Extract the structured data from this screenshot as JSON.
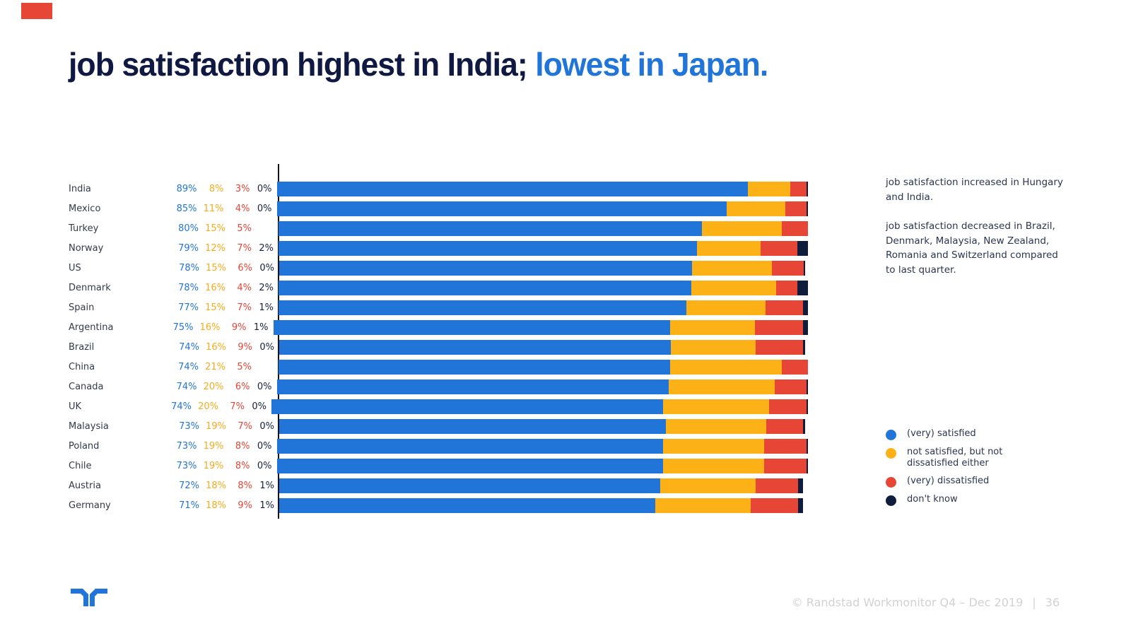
{
  "title": {
    "dark_part": "job satisfaction highest in India; ",
    "blue_part": "lowest in Japan."
  },
  "colors": {
    "series": [
      "#2175d9",
      "#fcb216",
      "#e74536",
      "#101c3c"
    ],
    "title_dark": "#0f1941",
    "title_blue": "#2175d9",
    "corner_accent": "#e74536",
    "footer_gray": "#d2d2d2"
  },
  "chart_data": {
    "type": "bar",
    "stacked": true,
    "orientation": "horizontal",
    "unit": "percent",
    "series_names": [
      "(very) satisfied",
      "not satisfied, but not dissatisfied either",
      "(very) dissatisfied",
      "don't know"
    ],
    "series_keys": [
      "satisfied",
      "neutral",
      "dissatisfied",
      "dont-know"
    ],
    "rows": [
      {
        "country": "India",
        "values": [
          89,
          8,
          3,
          0
        ],
        "labels": [
          "89%",
          "8%",
          "3%",
          "0%"
        ]
      },
      {
        "country": "Mexico",
        "values": [
          85,
          11,
          4,
          0
        ],
        "labels": [
          "85%",
          "11%",
          "4%",
          "0%"
        ]
      },
      {
        "country": "Turkey",
        "values": [
          80,
          15,
          5
        ],
        "labels": [
          "80%",
          "15%",
          "5%",
          ""
        ]
      },
      {
        "country": "Norway",
        "values": [
          79,
          12,
          7,
          2
        ],
        "labels": [
          "79%",
          "12%",
          "7%",
          "2%"
        ]
      },
      {
        "country": "US",
        "values": [
          78,
          15,
          6,
          0
        ],
        "labels": [
          "78%",
          "15%",
          "6%",
          "0%"
        ]
      },
      {
        "country": "Denmark",
        "values": [
          78,
          16,
          4,
          2
        ],
        "labels": [
          "78%",
          "16%",
          "4%",
          "2%"
        ]
      },
      {
        "country": "Spain",
        "values": [
          77,
          15,
          7,
          1
        ],
        "labels": [
          "77%",
          "15%",
          "7%",
          "1%"
        ]
      },
      {
        "country": "Argentina",
        "values": [
          75,
          16,
          9,
          1
        ],
        "labels": [
          "75%",
          "16%",
          "9%",
          "1%"
        ]
      },
      {
        "country": "Brazil",
        "values": [
          74,
          16,
          9,
          0
        ],
        "labels": [
          "74%",
          "16%",
          "9%",
          "0%"
        ]
      },
      {
        "country": "China",
        "values": [
          74,
          21,
          5
        ],
        "labels": [
          "74%",
          "21%",
          "5%",
          ""
        ]
      },
      {
        "country": "Canada",
        "values": [
          74,
          20,
          6,
          0
        ],
        "labels": [
          "74%",
          "20%",
          "6%",
          "0%"
        ]
      },
      {
        "country": "UK",
        "values": [
          74,
          20,
          7,
          0
        ],
        "labels": [
          "74%",
          "20%",
          "7%",
          "0%"
        ]
      },
      {
        "country": "Malaysia",
        "values": [
          73,
          19,
          7,
          0
        ],
        "labels": [
          "73%",
          "19%",
          "7%",
          "0%"
        ]
      },
      {
        "country": "Poland",
        "values": [
          73,
          19,
          8,
          0
        ],
        "labels": [
          "73%",
          "19%",
          "8%",
          "0%"
        ]
      },
      {
        "country": "Chile",
        "values": [
          73,
          19,
          8,
          0
        ],
        "labels": [
          "73%",
          "19%",
          "8%",
          "0%"
        ]
      },
      {
        "country": "Austria",
        "values": [
          72,
          18,
          8,
          1
        ],
        "labels": [
          "72%",
          "18%",
          "8%",
          "1%"
        ]
      },
      {
        "country": "Germany",
        "values": [
          71,
          18,
          9,
          1
        ],
        "labels": [
          "71%",
          "18%",
          "9%",
          "1%"
        ]
      }
    ]
  },
  "notes": [
    "job satisfaction increased in Hungary and India.",
    "job satisfaction decreased in Brazil, Denmark, Malaysia, New Zealand, Romania and Switzerland compared to last quarter."
  ],
  "legend": [
    {
      "label": "(very) satisfied",
      "color": "#2175d9"
    },
    {
      "label": "not satisfied, but not\ndissatisfied either",
      "color": "#fcb216"
    },
    {
      "label": "(very) dissatisfied",
      "color": "#e74536"
    },
    {
      "label": "don't know",
      "color": "#101c3c"
    }
  ],
  "footer": {
    "copyright": "© Randstad Workmonitor Q4 – Dec 2019",
    "separator": "|",
    "page_number": "36"
  }
}
